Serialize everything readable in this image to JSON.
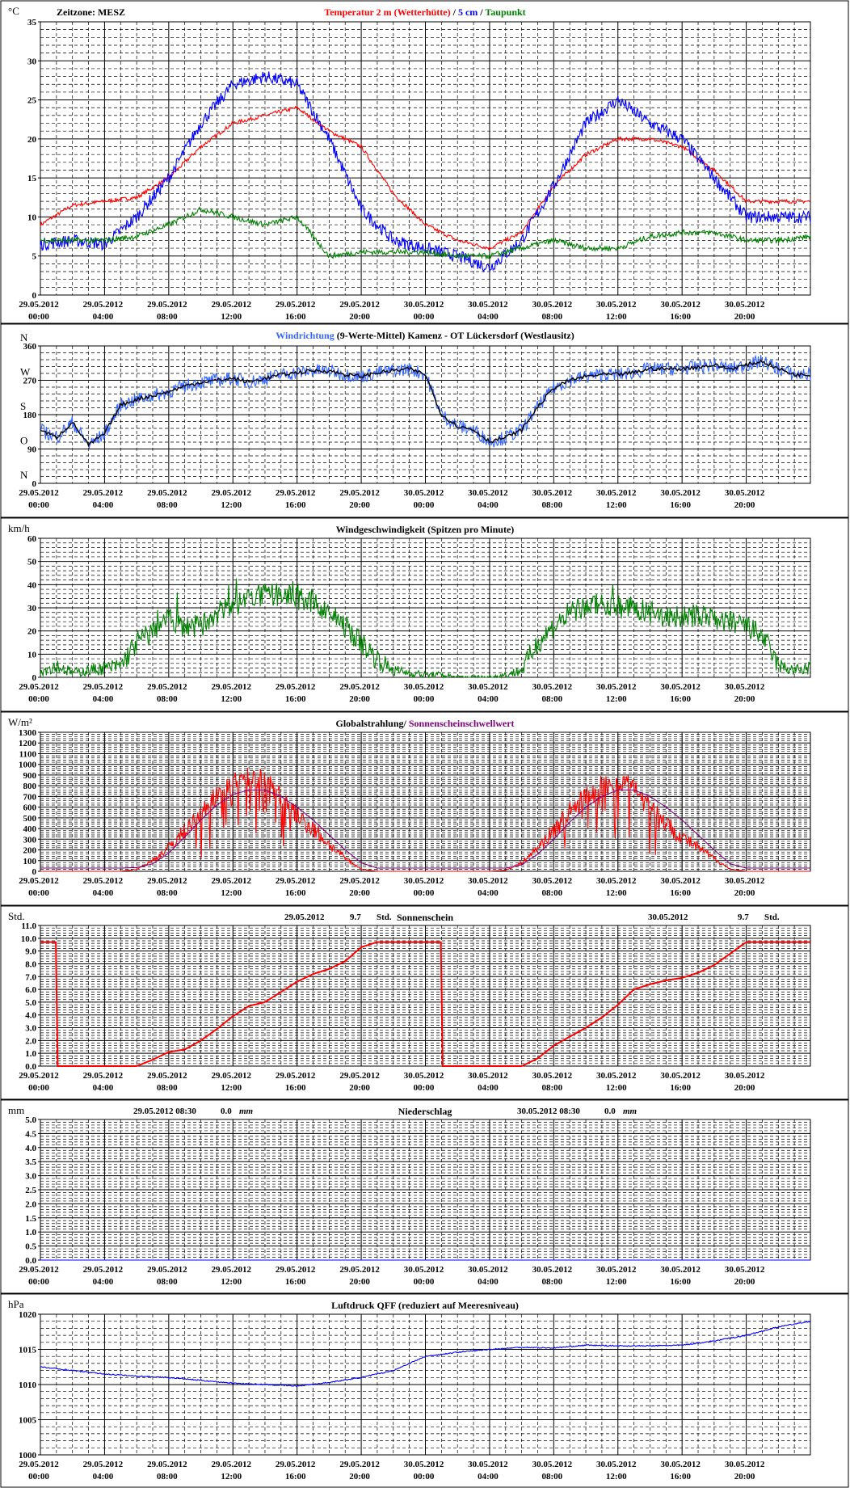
{
  "panels": [
    {
      "id": "temperature",
      "unit": "°C",
      "header_left": "Zeitzone: MESZ",
      "title_parts": [
        {
          "text": "Temperatur 2 m (Wetterhütte)",
          "color": "#ff0000"
        },
        {
          "text": "  /  ",
          "color": "#000000"
        },
        {
          "text": "5 cm",
          "color": "#0000ff"
        },
        {
          "text": " / ",
          "color": "#000000"
        },
        {
          "text": "Taupunkt",
          "color": "#008000"
        }
      ],
      "y_ticks": [
        "0",
        "5",
        "10",
        "15",
        "20",
        "25",
        "30",
        "35"
      ],
      "ylim": [
        0,
        35
      ]
    },
    {
      "id": "wind-direction",
      "unit": "",
      "header_left": "",
      "title_parts": [
        {
          "text": "Windrichtung",
          "color": "#3366ff"
        },
        {
          "text": " (9-Werte-Mittel)",
          "color": "#000000"
        },
        {
          "text": "          Kamenz - OT Lückersdorf (Westlausitz)",
          "color": "#000000"
        }
      ],
      "y_ticks": [
        "0",
        "90",
        "180",
        "270",
        "360"
      ],
      "y_compass": [
        "N",
        "O",
        "S",
        "W",
        "N"
      ],
      "ylim": [
        0,
        360
      ]
    },
    {
      "id": "wind-speed",
      "unit": "km/h",
      "header_left": "",
      "title_parts": [
        {
          "text": "Windgeschwindigkeit (Spitzen pro Minute)",
          "color": "#000000"
        }
      ],
      "y_ticks": [
        "0",
        "10",
        "20",
        "30",
        "40",
        "50",
        "60"
      ],
      "ylim": [
        0,
        60
      ]
    },
    {
      "id": "radiation",
      "unit": "W/m²",
      "header_left": "",
      "title_parts": [
        {
          "text": "Globalstrahlung/ ",
          "color": "#000000"
        },
        {
          "text": "Sonnenscheinschwellwert",
          "color": "#800080"
        }
      ],
      "y_ticks": [
        "0",
        "100",
        "200",
        "300",
        "400",
        "500",
        "600",
        "700",
        "800",
        "900",
        "1000",
        "1100",
        "1200",
        "1300"
      ],
      "ylim": [
        0,
        1300
      ]
    },
    {
      "id": "sunshine",
      "unit": "Std.",
      "header_left": "",
      "title_parts": [
        {
          "text": "Sonnenschein",
          "color": "#000000"
        }
      ],
      "day_summary": [
        {
          "date": "29.05.2012",
          "value": "9.7",
          "unit": "Std."
        },
        {
          "date": "30.05.2012",
          "value": "9.7",
          "unit": "Std."
        }
      ],
      "y_ticks": [
        "0.0",
        "1.0",
        "2.0",
        "3.0",
        "4.0",
        "5.0",
        "6.0",
        "7.0",
        "8.0",
        "9.0",
        "10.0",
        "11.0"
      ],
      "ylim": [
        0,
        11
      ]
    },
    {
      "id": "precipitation",
      "unit": "mm",
      "header_left": "",
      "title_parts": [
        {
          "text": "Niederschlag",
          "color": "#000000"
        }
      ],
      "day_summary": [
        {
          "date": "29.05.2012 08:30",
          "value": "0.0",
          "unit": "mm"
        },
        {
          "date": "30.05.2012 08:30",
          "value": "0.0",
          "unit": "mm"
        }
      ],
      "y_ticks": [
        "0.0",
        "0.5",
        "1.0",
        "1.5",
        "2.0",
        "2.5",
        "3.0",
        "3.5",
        "4.0",
        "4.5",
        "5.0"
      ],
      "ylim": [
        0,
        5
      ]
    },
    {
      "id": "pressure",
      "unit": "hPa",
      "header_left": "",
      "title_parts": [
        {
          "text": "Luftdruck QFF (reduziert auf Meeresniveau)",
          "color": "#000000"
        }
      ],
      "y_ticks": [
        "1000",
        "1005",
        "1010",
        "1015",
        "1020"
      ],
      "ylim": [
        1000,
        1020
      ]
    }
  ],
  "x_labels": [
    {
      "date": "29.05.2012",
      "time": "00:00"
    },
    {
      "date": "29.05.2012",
      "time": "04:00"
    },
    {
      "date": "29.05.2012",
      "time": "08:00"
    },
    {
      "date": "29.05.2012",
      "time": "12:00"
    },
    {
      "date": "29.05.2012",
      "time": "16:00"
    },
    {
      "date": "29.05.2012",
      "time": "20:00"
    },
    {
      "date": "30.05.2012",
      "time": "00:00"
    },
    {
      "date": "30.05.2012",
      "time": "04:00"
    },
    {
      "date": "30.05.2012",
      "time": "08:00"
    },
    {
      "date": "30.05.2012",
      "time": "12:00"
    },
    {
      "date": "30.05.2012",
      "time": "16:00"
    },
    {
      "date": "30.05.2012",
      "time": "20:00"
    }
  ],
  "chart_data": [
    {
      "type": "line",
      "title": "Temperatur 2 m (Wetterhütte) / 5 cm / Taupunkt",
      "ylabel": "°C",
      "ylim": [
        0,
        35
      ],
      "x_hours": [
        0,
        2,
        4,
        6,
        8,
        10,
        12,
        14,
        16,
        18,
        20,
        22,
        24,
        26,
        28,
        30,
        32,
        34,
        36,
        38,
        40,
        42,
        44,
        46,
        48
      ],
      "series": [
        {
          "name": "Temperatur 2 m (Wetterhütte)",
          "color": "#ff0000",
          "values": [
            9,
            11.5,
            12,
            12.5,
            15,
            19,
            22,
            23,
            24,
            21,
            19,
            13,
            9,
            7,
            6,
            8,
            14,
            18,
            20,
            20,
            19,
            16,
            12,
            12,
            12
          ]
        },
        {
          "name": "5 cm",
          "color": "#0000ff",
          "values": [
            6.5,
            7,
            6.5,
            10,
            15,
            22,
            27,
            28,
            27,
            20,
            11,
            7,
            6,
            5,
            3.5,
            7,
            14,
            22,
            25,
            22,
            20,
            15,
            10,
            10,
            10
          ]
        },
        {
          "name": "Taupunkt",
          "color": "#008000",
          "values": [
            7,
            7,
            7,
            7.5,
            9,
            11,
            10,
            9,
            10,
            5,
            5.5,
            5.5,
            5.5,
            5,
            5,
            6,
            7,
            6,
            6,
            7.5,
            8,
            8,
            7,
            7,
            7.5
          ]
        }
      ]
    },
    {
      "type": "line",
      "title": "Windrichtung (9-Werte-Mittel)",
      "ylim": [
        0,
        360
      ],
      "x_hours": [
        0,
        1,
        2,
        3,
        4,
        5,
        6,
        7,
        8,
        9,
        10,
        11,
        12,
        13,
        14,
        15,
        16,
        17,
        18,
        19,
        20,
        21,
        22,
        23,
        24,
        25,
        26,
        27,
        28,
        29,
        30,
        31,
        32,
        33,
        34,
        35,
        36,
        37,
        38,
        39,
        40,
        41,
        42,
        43,
        44,
        45,
        46,
        47,
        48
      ],
      "series": [
        {
          "name": "Windrichtung",
          "color": "#3366ff",
          "values": [
            140,
            120,
            160,
            100,
            130,
            205,
            220,
            230,
            240,
            255,
            265,
            270,
            275,
            265,
            275,
            285,
            290,
            295,
            295,
            285,
            280,
            290,
            295,
            300,
            285,
            180,
            150,
            140,
            110,
            120,
            140,
            200,
            250,
            270,
            280,
            285,
            285,
            290,
            300,
            300,
            300,
            305,
            310,
            300,
            310,
            320,
            300,
            285,
            285
          ]
        }
      ]
    },
    {
      "type": "line",
      "title": "Windgeschwindigkeit (Spitzen pro Minute)",
      "ylabel": "km/h",
      "ylim": [
        0,
        60
      ],
      "x_hours": [
        0,
        1,
        2,
        3,
        4,
        5,
        6,
        7,
        8,
        9,
        10,
        11,
        12,
        13,
        14,
        15,
        16,
        17,
        18,
        19,
        20,
        21,
        22,
        23,
        24,
        25,
        26,
        27,
        28,
        29,
        30,
        31,
        32,
        33,
        34,
        35,
        36,
        37,
        38,
        39,
        40,
        41,
        42,
        43,
        44,
        45,
        46,
        47,
        48
      ],
      "series": [
        {
          "name": "Windgeschwindigkeit",
          "color": "#008000",
          "values": [
            3,
            5,
            2,
            3,
            4,
            5,
            15,
            20,
            25,
            22,
            22,
            28,
            30,
            35,
            35,
            36,
            34,
            32,
            28,
            22,
            15,
            8,
            3,
            2,
            1,
            1,
            0,
            0,
            0,
            1,
            3,
            15,
            22,
            28,
            30,
            32,
            30,
            30,
            28,
            26,
            26,
            27,
            25,
            24,
            22,
            18,
            5,
            3,
            4
          ]
        }
      ]
    },
    {
      "type": "line",
      "title": "Globalstrahlung/ Sonnenscheinschwellwert",
      "ylabel": "W/m²",
      "ylim": [
        0,
        1300
      ],
      "x_hours": [
        0,
        2,
        4,
        5,
        6,
        7,
        8,
        9,
        10,
        11,
        12,
        13,
        14,
        15,
        16,
        17,
        18,
        19,
        20,
        21,
        22,
        24,
        26,
        28,
        29,
        30,
        31,
        32,
        33,
        34,
        35,
        36,
        37,
        38,
        39,
        40,
        41,
        42,
        43,
        44,
        46,
        48
      ],
      "series": [
        {
          "name": "Globalstrahlung",
          "color": "#ff0000",
          "values": [
            0,
            0,
            0,
            0,
            20,
            100,
            220,
            380,
            560,
            720,
            830,
            900,
            880,
            700,
            520,
            400,
            250,
            120,
            20,
            0,
            0,
            0,
            0,
            0,
            10,
            80,
            220,
            380,
            560,
            700,
            820,
            850,
            800,
            650,
            450,
            320,
            220,
            120,
            20,
            0,
            0,
            0
          ]
        },
        {
          "name": "Sonnenscheinschwellwert",
          "color": "#800080",
          "values": [
            30,
            30,
            30,
            30,
            35,
            70,
            170,
            320,
            480,
            620,
            720,
            760,
            760,
            700,
            600,
            480,
            340,
            200,
            80,
            30,
            30,
            30,
            30,
            30,
            30,
            60,
            160,
            300,
            460,
            600,
            700,
            760,
            760,
            700,
            600,
            480,
            340,
            200,
            70,
            30,
            30,
            30
          ]
        }
      ]
    },
    {
      "type": "line",
      "title": "Sonnenschein",
      "ylabel": "Std.",
      "ylim": [
        0,
        11
      ],
      "x_hours": [
        0,
        1,
        1.01,
        6,
        7,
        8,
        9,
        10,
        11,
        12,
        13,
        14,
        15,
        16,
        17,
        18,
        19,
        20,
        21,
        22,
        24,
        25,
        25.01,
        30,
        31,
        32,
        33,
        34,
        35,
        36,
        37,
        38,
        39,
        40,
        41,
        42,
        43,
        44,
        46,
        48
      ],
      "series": [
        {
          "name": "Sonnenschein",
          "color": "#ff0000",
          "values": [
            9.7,
            9.7,
            0,
            0,
            0.5,
            1.1,
            1.3,
            2.0,
            2.9,
            3.9,
            4.7,
            5.0,
            5.8,
            6.6,
            7.2,
            7.6,
            8.2,
            9.3,
            9.7,
            9.7,
            9.7,
            9.7,
            0,
            0,
            0.6,
            1.6,
            2.3,
            3.0,
            3.8,
            4.8,
            6.0,
            6.4,
            6.7,
            6.9,
            7.3,
            7.9,
            8.8,
            9.7,
            9.7,
            9.7
          ]
        }
      ]
    },
    {
      "type": "line",
      "title": "Niederschlag",
      "ylabel": "mm",
      "ylim": [
        0,
        5
      ],
      "x_hours": [
        0,
        48
      ],
      "series": [
        {
          "name": "Niederschlag",
          "color": "#0000ff",
          "values": [
            0,
            0
          ]
        }
      ]
    },
    {
      "type": "line",
      "title": "Luftdruck QFF (reduziert auf Meeresniveau)",
      "ylabel": "hPa",
      "ylim": [
        1000,
        1020
      ],
      "x_hours": [
        0,
        2,
        4,
        6,
        8,
        10,
        12,
        14,
        16,
        18,
        20,
        22,
        24,
        26,
        28,
        30,
        32,
        34,
        36,
        38,
        40,
        42,
        44,
        46,
        48
      ],
      "series": [
        {
          "name": "Luftdruck QFF",
          "color": "#0000ff",
          "values": [
            1012.5,
            1012,
            1011.5,
            1011.2,
            1011,
            1010.6,
            1010.2,
            1010,
            1009.8,
            1010.3,
            1011,
            1012,
            1014,
            1014.6,
            1015,
            1015.3,
            1015.2,
            1015.6,
            1015.5,
            1015.5,
            1015.6,
            1016.2,
            1017,
            1018.2,
            1019
          ]
        }
      ]
    }
  ]
}
